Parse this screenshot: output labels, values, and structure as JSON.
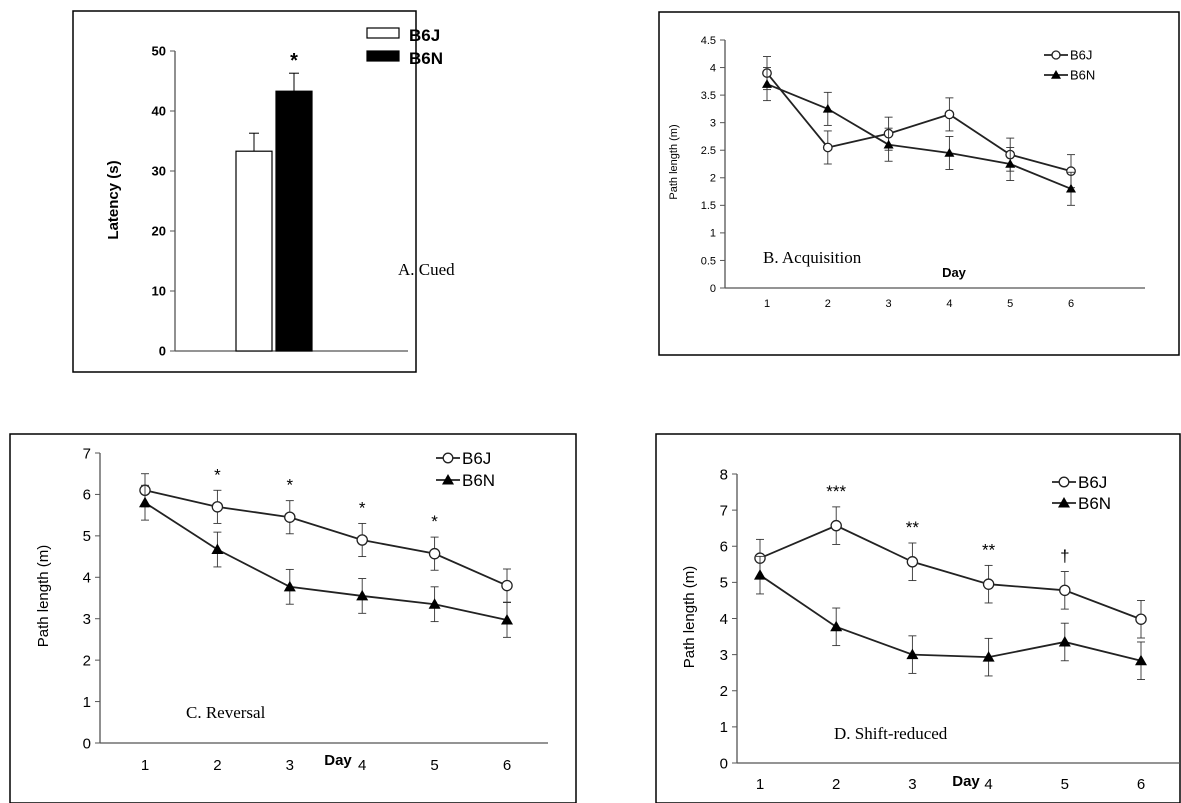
{
  "chart_data": [
    {
      "type": "bar",
      "panel_label": "A. Cued",
      "ylabel": "Latency (s)",
      "ylim": [
        0,
        50
      ],
      "yticks": [
        "0",
        "10",
        "20",
        "30",
        "40",
        "50"
      ],
      "legend_position": "top-right",
      "series": [
        {
          "name": "B6J",
          "value": 33.3,
          "error": 3.0,
          "fill": "#ffffff"
        },
        {
          "name": "B6N",
          "value": 43.3,
          "error": 3.0,
          "fill": "#000000"
        }
      ],
      "annotations": [
        {
          "series": "B6N",
          "text": "*"
        }
      ]
    },
    {
      "type": "line",
      "panel_label": "B. Acquisition",
      "xlabel": "Day",
      "ylabel": "Path length (m)",
      "x": [
        1,
        2,
        3,
        4,
        5,
        6
      ],
      "xticks": [
        "1",
        "2",
        "3",
        "4",
        "5",
        "6"
      ],
      "ylim": [
        0,
        4.5
      ],
      "yticks": [
        "0",
        "0.5",
        "1",
        "1.5",
        "2",
        "2.5",
        "3",
        "3.5",
        "4",
        "4.5"
      ],
      "legend_position": "top-right",
      "series": [
        {
          "name": "B6J",
          "marker": "open-circle",
          "values": [
            3.9,
            2.55,
            2.8,
            3.15,
            2.42,
            2.12
          ],
          "errors": [
            0.3,
            0.3,
            0.3,
            0.3,
            0.3,
            0.3
          ]
        },
        {
          "name": "B6N",
          "marker": "filled-triangle",
          "values": [
            3.7,
            3.25,
            2.6,
            2.45,
            2.25,
            1.8
          ],
          "errors": [
            0.3,
            0.3,
            0.3,
            0.3,
            0.3,
            0.3
          ]
        }
      ],
      "annotations": []
    },
    {
      "type": "line",
      "panel_label": "C. Reversal",
      "xlabel": "Day",
      "ylabel": "Path length (m)",
      "x": [
        1,
        2,
        3,
        4,
        5,
        6
      ],
      "xticks": [
        "1",
        "2",
        "3",
        "4",
        "5",
        "6"
      ],
      "ylim": [
        0,
        7
      ],
      "yticks": [
        "0",
        "1",
        "2",
        "3",
        "4",
        "5",
        "6",
        "7"
      ],
      "legend_position": "top-right",
      "series": [
        {
          "name": "B6J",
          "marker": "open-circle",
          "values": [
            6.1,
            5.7,
            5.45,
            4.9,
            4.57,
            3.8
          ],
          "errors": [
            0.4,
            0.4,
            0.4,
            0.4,
            0.4,
            0.4
          ]
        },
        {
          "name": "B6N",
          "marker": "filled-triangle",
          "values": [
            5.8,
            4.67,
            3.77,
            3.55,
            3.35,
            2.97
          ],
          "errors": [
            0.42,
            0.42,
            0.42,
            0.42,
            0.42,
            0.42
          ]
        }
      ],
      "annotations": [
        {
          "x": 2,
          "text": "*"
        },
        {
          "x": 3,
          "text": "*"
        },
        {
          "x": 4,
          "text": "*"
        },
        {
          "x": 5,
          "text": "*"
        }
      ]
    },
    {
      "type": "line",
      "panel_label": "D. Shift-reduced",
      "xlabel": "Day",
      "ylabel": "Path length (m)",
      "x": [
        1,
        2,
        3,
        4,
        5,
        6
      ],
      "xticks": [
        "1",
        "2",
        "3",
        "4",
        "5",
        "6"
      ],
      "ylim": [
        0,
        8
      ],
      "yticks": [
        "0",
        "1",
        "2",
        "3",
        "4",
        "5",
        "6",
        "7",
        "8"
      ],
      "legend_position": "top-right",
      "series": [
        {
          "name": "B6J",
          "marker": "open-circle",
          "values": [
            5.67,
            6.57,
            5.57,
            4.95,
            4.78,
            3.98
          ],
          "errors": [
            0.52,
            0.52,
            0.52,
            0.52,
            0.52,
            0.52
          ]
        },
        {
          "name": "B6N",
          "marker": "filled-triangle",
          "values": [
            5.2,
            3.77,
            3.0,
            2.93,
            3.35,
            2.83
          ],
          "errors": [
            0.52,
            0.52,
            0.52,
            0.52,
            0.52,
            0.52
          ]
        }
      ],
      "annotations": [
        {
          "x": 2,
          "text": "***"
        },
        {
          "x": 3,
          "text": "**"
        },
        {
          "x": 4,
          "text": "**"
        },
        {
          "x": 5,
          "text": "†"
        }
      ]
    }
  ]
}
